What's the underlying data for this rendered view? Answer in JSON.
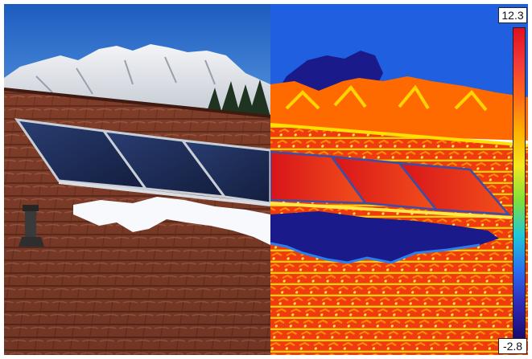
{
  "thermal_scale": {
    "max_label": "12.3",
    "min_label": "-2.8",
    "gradient_colors": [
      "#e0101c",
      "#f23a3a",
      "#ff6a18",
      "#ffb000",
      "#f4e81e",
      "#7fe03a",
      "#1fc8d8",
      "#2a70f0",
      "#2f2ab8",
      "#1a0a70"
    ]
  },
  "colors": {
    "sky": "#1f62c2",
    "mountain_snow": "#eef0f4",
    "roof_tile": "#7a3a26",
    "solar_panel": "#1c2c55",
    "snow": "#f7f9fc",
    "thermal_hot": "#e01818",
    "thermal_cold": "#1a1a8a"
  }
}
